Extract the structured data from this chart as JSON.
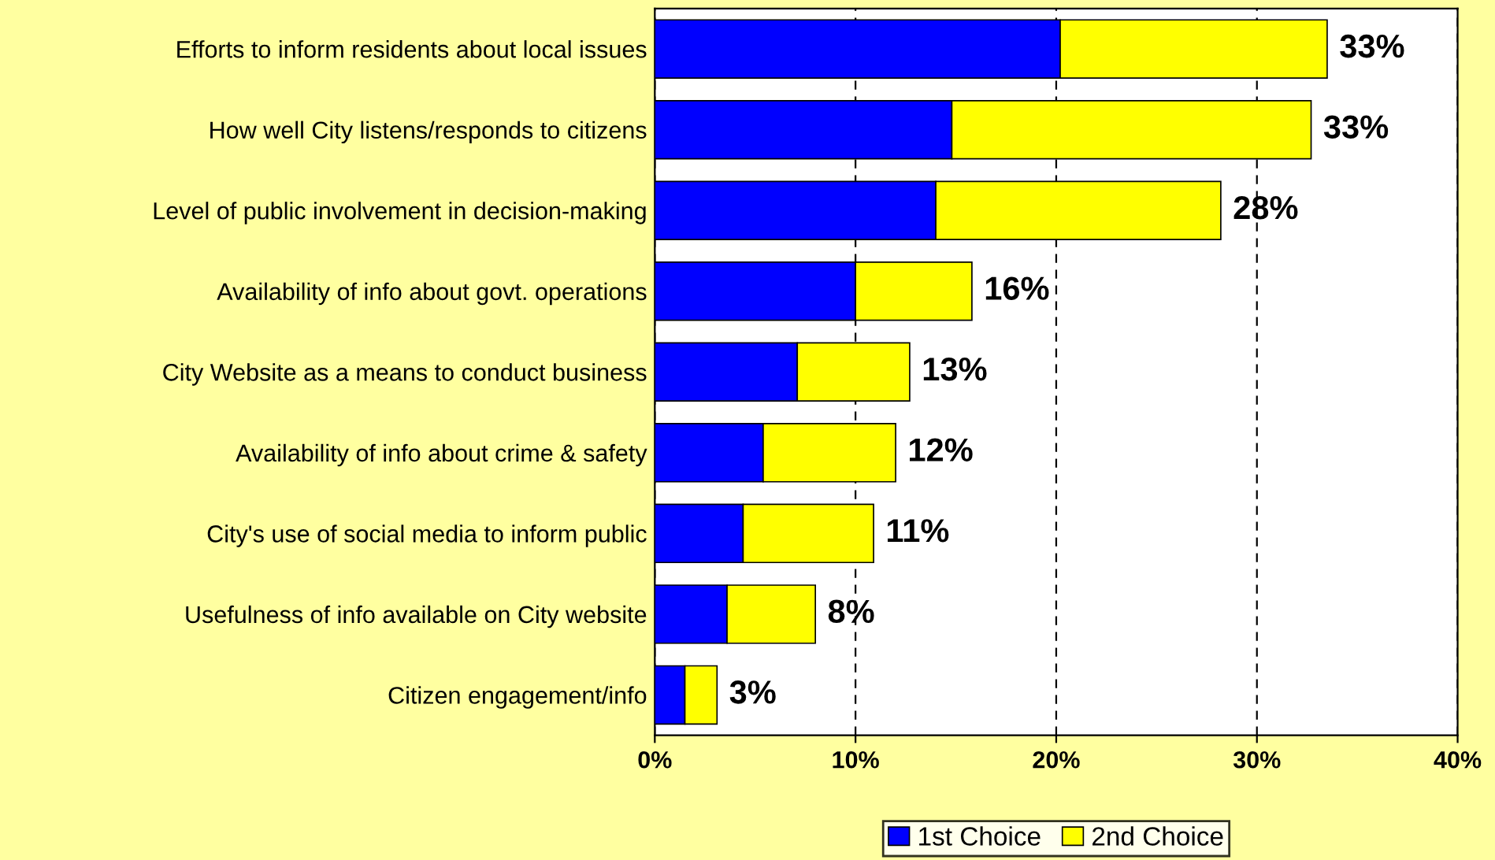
{
  "chart_data": {
    "type": "bar",
    "orientation": "horizontal",
    "stacked": true,
    "categories": [
      "Efforts to inform residents about local issues",
      "How well City listens/responds to citizens",
      "Level of public involvement in decision-making",
      "Availability of info about govt. operations",
      "City Website as a means to conduct business",
      "Availability of info about crime & safety",
      "City's use of social media to inform public",
      "Usefulness of info available on City website",
      "Citizen engagement/info"
    ],
    "series": [
      {
        "name": "1st Choice",
        "color": "#0000ff",
        "values": [
          20.2,
          14.8,
          14.0,
          10.0,
          7.1,
          5.4,
          4.4,
          3.6,
          1.5
        ]
      },
      {
        "name": "2nd Choice",
        "color": "#ffff00",
        "values": [
          13.3,
          17.9,
          14.2,
          5.8,
          5.6,
          6.6,
          6.5,
          4.4,
          1.6
        ]
      }
    ],
    "totals": [
      "33%",
      "33%",
      "28%",
      "16%",
      "13%",
      "12%",
      "11%",
      "8%",
      "3%"
    ],
    "xlim": [
      0,
      40
    ],
    "xticks": [
      {
        "value": 0,
        "label": "0%"
      },
      {
        "value": 10,
        "label": "10%"
      },
      {
        "value": 20,
        "label": "20%"
      },
      {
        "value": 30,
        "label": "30%"
      },
      {
        "value": 40,
        "label": "40%"
      }
    ],
    "grid": "x",
    "legend": "bottom"
  }
}
